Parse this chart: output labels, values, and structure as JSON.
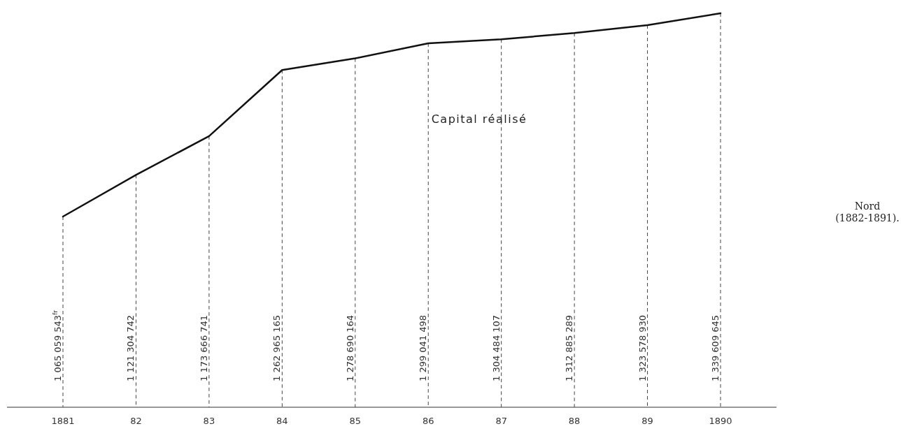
{
  "chart_data": {
    "type": "line",
    "categories": [
      "1881",
      "82",
      "83",
      "84",
      "85",
      "86",
      "87",
      "88",
      "89",
      "1890"
    ],
    "values": [
      1065059543,
      1121304742,
      1173666741,
      1262965165,
      1278690164,
      1299041498,
      1304484107,
      1312885289,
      1323578930,
      1339609645
    ],
    "value_labels": [
      "1 065 059 543$^{fr}$",
      "1 121 304 742",
      "1 173 666 741",
      "1 262 965 165",
      "1 278 690 164",
      "1 299 041 498",
      "1 304 484 107",
      "1 312 885 289",
      "1 323 578 930",
      "1 339 609 645"
    ],
    "color": "#111111",
    "marker": "none",
    "line_style": "solid",
    "grid": "x",
    "annotations": [
      "Capital réalisé",
      "Nord\n(1882-1891)."
    ]
  }
}
